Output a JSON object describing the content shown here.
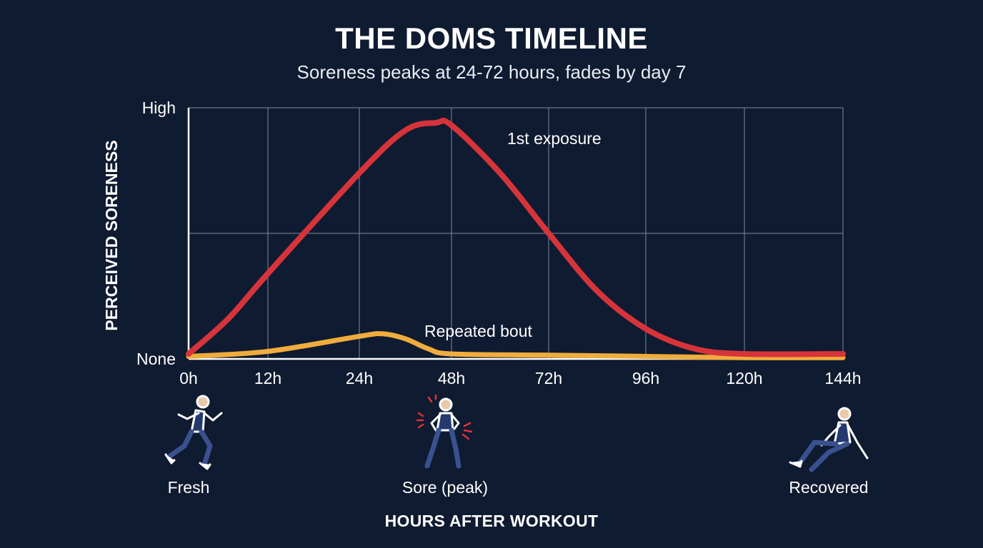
{
  "chart_data": {
    "type": "line",
    "title": "THE DOMS TIMELINE",
    "subtitle": "Soreness peaks at 24-72 hours, fades by day 7",
    "xlabel": "HOURS AFTER WORKOUT",
    "ylabel": "PERCEIVED SORENESS",
    "x_ticks": [
      0,
      12,
      24,
      48,
      72,
      96,
      120,
      144
    ],
    "x_tick_labels": [
      "0h",
      "12h",
      "24h",
      "48h",
      "72h",
      "96h",
      "120h",
      "144h"
    ],
    "y_tick_labels": [
      "None",
      "High"
    ],
    "ylim": [
      0,
      1
    ],
    "grid": true,
    "series": [
      {
        "name": "1st exposure",
        "color": "#d6343a",
        "points": [
          [
            0,
            0.02
          ],
          [
            6,
            0.16
          ],
          [
            12,
            0.34
          ],
          [
            24,
            0.74
          ],
          [
            36,
            0.91
          ],
          [
            44,
            0.94
          ],
          [
            48,
            0.93
          ],
          [
            60,
            0.74
          ],
          [
            72,
            0.5
          ],
          [
            84,
            0.27
          ],
          [
            96,
            0.12
          ],
          [
            108,
            0.04
          ],
          [
            120,
            0.02
          ],
          [
            144,
            0.02
          ]
        ]
      },
      {
        "name": "Repeated bout",
        "color": "#f0ac3c",
        "points": [
          [
            0,
            0.01
          ],
          [
            12,
            0.03
          ],
          [
            24,
            0.09
          ],
          [
            30,
            0.1
          ],
          [
            36,
            0.08
          ],
          [
            42,
            0.04
          ],
          [
            48,
            0.02
          ],
          [
            72,
            0.015
          ],
          [
            96,
            0.01
          ],
          [
            120,
            0.005
          ],
          [
            144,
            0.005
          ]
        ]
      }
    ]
  },
  "figures": [
    {
      "label": "Fresh",
      "icon": "runner-icon"
    },
    {
      "label": "Sore (peak)",
      "icon": "sore-person-icon"
    },
    {
      "label": "Recovered",
      "icon": "resting-person-icon"
    }
  ]
}
